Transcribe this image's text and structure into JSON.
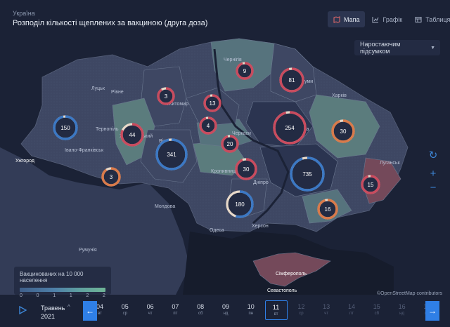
{
  "header": {
    "country": "Україна",
    "title": "Розподіл кількості щеплених за вакциною (друга доза)"
  },
  "tabs": [
    {
      "label": "Мапа",
      "icon": "map-icon",
      "active": true
    },
    {
      "label": "Графік",
      "icon": "chart-icon",
      "active": false
    },
    {
      "label": "Таблиця",
      "icon": "table-icon",
      "active": false
    }
  ],
  "mode_select": {
    "value": "Наростаючим підсумком"
  },
  "map_controls": {
    "refresh": "↻",
    "zoom_in": "+",
    "zoom_out": "−"
  },
  "legend": {
    "title": "Вакцинованих на 10 000 населення",
    "ticks": [
      "0",
      "0",
      "1",
      "1",
      "2",
      "2"
    ]
  },
  "credit": "©OpenStreetMap contributors",
  "timeline": {
    "month": "Травень",
    "year": "2021",
    "prev": "←",
    "next": "→",
    "days": [
      {
        "n": "04",
        "w": "вт",
        "dim": false
      },
      {
        "n": "05",
        "w": "ср",
        "dim": false
      },
      {
        "n": "06",
        "w": "чт",
        "dim": false
      },
      {
        "n": "07",
        "w": "пт",
        "dim": false
      },
      {
        "n": "08",
        "w": "сб",
        "dim": false
      },
      {
        "n": "09",
        "w": "нд",
        "dim": false
      },
      {
        "n": "10",
        "w": "пн",
        "dim": false
      },
      {
        "n": "11",
        "w": "вт",
        "dim": false,
        "selected": true
      },
      {
        "n": "12",
        "w": "ср",
        "dim": true
      },
      {
        "n": "13",
        "w": "чт",
        "dim": true
      },
      {
        "n": "14",
        "w": "пт",
        "dim": true
      },
      {
        "n": "15",
        "w": "сб",
        "dim": true
      },
      {
        "n": "16",
        "w": "нд",
        "dim": true
      },
      {
        "n": "17",
        "w": "пн",
        "dim": true
      }
    ]
  },
  "cities": [
    {
      "name": "Луцьк",
      "white": false
    },
    {
      "name": "Рівне",
      "white": false
    },
    {
      "name": "Житомир",
      "white": false
    },
    {
      "name": "Чернігів",
      "white": false
    },
    {
      "name": "Суми",
      "white": false
    },
    {
      "name": "Харків",
      "white": false
    },
    {
      "name": "Тернопіль",
      "white": false
    },
    {
      "name": "Хмельницький",
      "white": false
    },
    {
      "name": "Івано-Франківськ",
      "white": false
    },
    {
      "name": "Ужгород",
      "white": true
    },
    {
      "name": "Вінниця",
      "white": false
    },
    {
      "name": "Черкаси",
      "white": false
    },
    {
      "name": "Полтава",
      "white": false
    },
    {
      "name": "Кропивницький",
      "white": false
    },
    {
      "name": "Дніпро",
      "white": false
    },
    {
      "name": "Луганськ",
      "white": false
    },
    {
      "name": "Молдова",
      "white": false
    },
    {
      "name": "Одеса",
      "white": false
    },
    {
      "name": "Херсон",
      "white": false
    },
    {
      "name": "Румунія",
      "white": false
    },
    {
      "name": "Сімферополь",
      "white": true
    },
    {
      "name": "Севастополь",
      "white": true
    }
  ],
  "bubbles": [
    {
      "value": "9",
      "ring": "#c94b5e",
      "frac": 0.95
    },
    {
      "value": "81",
      "ring": "#c94b5e",
      "frac": 0.96
    },
    {
      "value": "3",
      "ring": "#c94b5e",
      "frac": 0.9
    },
    {
      "value": "13",
      "ring": "#c94b5e",
      "frac": 0.95
    },
    {
      "value": "150",
      "ring": "#3b78c4",
      "frac": 0.97
    },
    {
      "value": "44",
      "ring": "#c94b5e",
      "frac": 0.82
    },
    {
      "value": "4",
      "ring": "#c94b5e",
      "frac": 0.95
    },
    {
      "value": "254",
      "ring": "#c94b5e",
      "frac": 0.96
    },
    {
      "value": "30",
      "ring": "#d97a4a",
      "frac": 0.95
    },
    {
      "value": "341",
      "ring": "#3b78c4",
      "frac": 0.97
    },
    {
      "value": "20",
      "ring": "#c94b5e",
      "frac": 0.95
    },
    {
      "value": "3",
      "ring": "#d97a4a",
      "frac": 0.9
    },
    {
      "value": "30",
      "ring": "#c94b5e",
      "frac": 0.94
    },
    {
      "value": "735",
      "ring": "#3b78c4",
      "frac": 0.95
    },
    {
      "value": "15",
      "ring": "#c94b5e",
      "frac": 0.95
    },
    {
      "value": "180",
      "ring": "#3b78c4",
      "frac": 0.55
    },
    {
      "value": "16",
      "ring": "#d97a4a",
      "frac": 0.95
    }
  ]
}
